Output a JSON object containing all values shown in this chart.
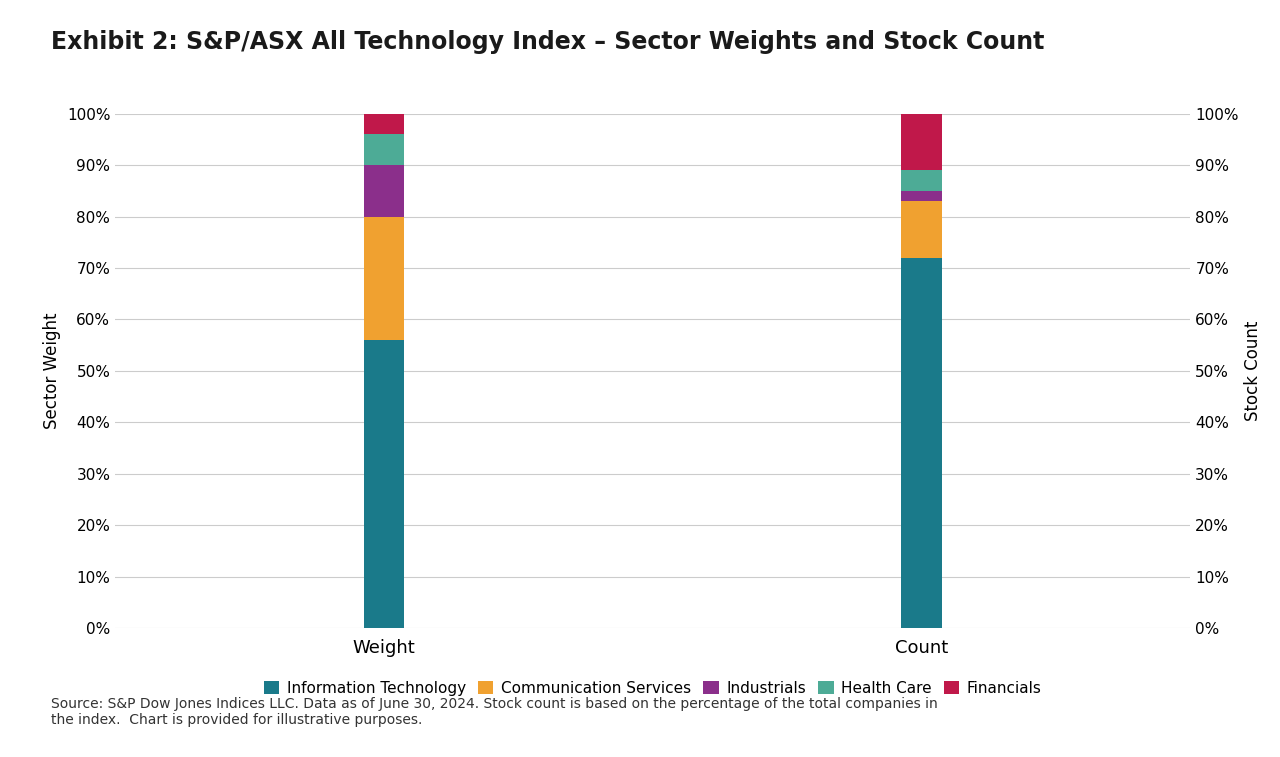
{
  "title": "Exhibit 2: S&P/ASX All Technology Index – Sector Weights and Stock Count",
  "categories": [
    "Weight",
    "Count"
  ],
  "sectors": [
    "Information Technology",
    "Communication Services",
    "Industrials",
    "Health Care",
    "Financials"
  ],
  "colors": [
    "#1a7a8a",
    "#f0a130",
    "#8b2f8b",
    "#4dab96",
    "#c0184a"
  ],
  "weight_values": [
    56,
    24,
    10,
    6,
    4
  ],
  "count_values": [
    72,
    11,
    2,
    4,
    11
  ],
  "ylabel_left": "Sector Weight",
  "ylabel_right": "Stock Count",
  "ylim": [
    0,
    100
  ],
  "ytick_labels": [
    "0%",
    "10%",
    "20%",
    "30%",
    "40%",
    "50%",
    "60%",
    "70%",
    "80%",
    "90%",
    "100%"
  ],
  "ytick_values": [
    0,
    10,
    20,
    30,
    40,
    50,
    60,
    70,
    80,
    90,
    100
  ],
  "footnote": "Source: S&P Dow Jones Indices LLC. Data as of June 30, 2024. Stock count is based on the percentage of the total companies in\nthe index.  Chart is provided for illustrative purposes.",
  "background_color": "#ffffff",
  "grid_color": "#cccccc",
  "title_fontsize": 17,
  "axis_label_fontsize": 12,
  "tick_fontsize": 11,
  "legend_fontsize": 11,
  "footnote_fontsize": 10,
  "bar_width": 0.15,
  "x_positions": [
    1,
    3
  ],
  "x_lim": [
    0,
    4
  ]
}
